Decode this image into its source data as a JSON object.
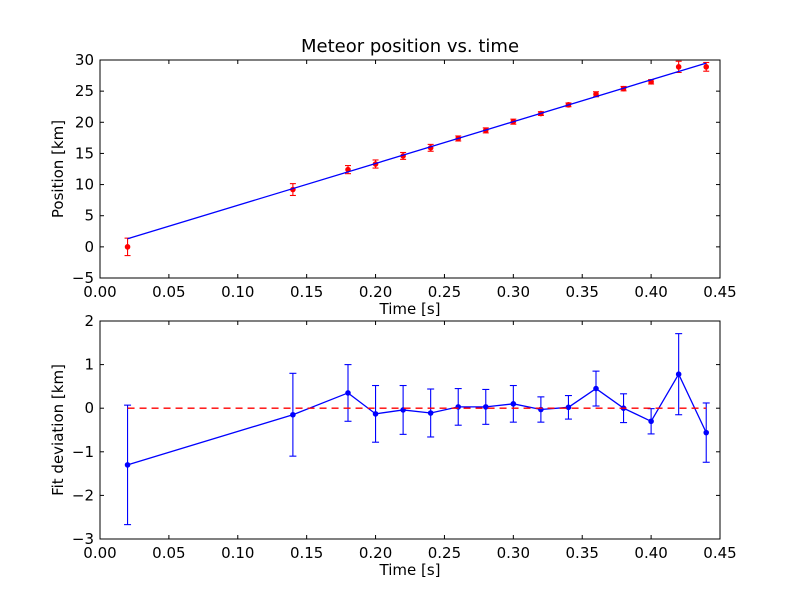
{
  "chart_data": [
    {
      "type": "scatter",
      "title": "Meteor position vs. time",
      "xlabel": "Time [s]",
      "ylabel": "Position [km]",
      "xlim": [
        0.0,
        0.45
      ],
      "ylim": [
        -5,
        30
      ],
      "xticks": [
        0.0,
        0.05,
        0.1,
        0.15,
        0.2,
        0.25,
        0.3,
        0.35,
        0.4,
        0.45
      ],
      "xtick_labels": [
        "0.00",
        "0.05",
        "0.10",
        "0.15",
        "0.20",
        "0.25",
        "0.30",
        "0.35",
        "0.40",
        "0.45"
      ],
      "yticks": [
        -5,
        0,
        5,
        10,
        15,
        20,
        25,
        30
      ],
      "ytick_labels": [
        "−5",
        "0",
        "5",
        "10",
        "15",
        "20",
        "25",
        "30"
      ],
      "grid": false,
      "series": [
        {
          "kind": "errorbar",
          "color": "#ff0000",
          "marker": "dot",
          "x": [
            0.02,
            0.14,
            0.18,
            0.2,
            0.22,
            0.24,
            0.26,
            0.28,
            0.3,
            0.32,
            0.34,
            0.36,
            0.38,
            0.4,
            0.42,
            0.44
          ],
          "y": [
            0.0,
            9.2,
            12.4,
            13.3,
            14.6,
            15.9,
            17.4,
            18.7,
            20.1,
            21.4,
            22.8,
            24.5,
            25.4,
            26.5,
            28.9,
            28.9
          ],
          "yerr": [
            1.4,
            0.95,
            0.65,
            0.65,
            0.55,
            0.55,
            0.4,
            0.4,
            0.4,
            0.3,
            0.3,
            0.4,
            0.35,
            0.35,
            0.9,
            0.7
          ]
        },
        {
          "kind": "line",
          "color": "#0000ff",
          "x": [
            0.02,
            0.44
          ],
          "y": [
            1.3,
            29.5
          ]
        }
      ]
    },
    {
      "type": "line",
      "title": "",
      "xlabel": "Time [s]",
      "ylabel": "Fit deviation [km]",
      "xlim": [
        0.0,
        0.45
      ],
      "ylim": [
        -3,
        2
      ],
      "xticks": [
        0.0,
        0.05,
        0.1,
        0.15,
        0.2,
        0.25,
        0.3,
        0.35,
        0.4,
        0.45
      ],
      "xtick_labels": [
        "0.00",
        "0.05",
        "0.10",
        "0.15",
        "0.20",
        "0.25",
        "0.30",
        "0.35",
        "0.40",
        "0.45"
      ],
      "yticks": [
        -3,
        -2,
        -1,
        0,
        1,
        2
      ],
      "ytick_labels": [
        "−3",
        "−2",
        "−1",
        "0",
        "1",
        "2"
      ],
      "grid": false,
      "series": [
        {
          "kind": "errorbar-line",
          "color": "#0000ff",
          "marker": "dot",
          "x": [
            0.02,
            0.14,
            0.18,
            0.2,
            0.22,
            0.24,
            0.26,
            0.28,
            0.3,
            0.32,
            0.34,
            0.36,
            0.38,
            0.4,
            0.42,
            0.44
          ],
          "y": [
            -1.3,
            -0.15,
            0.35,
            -0.13,
            -0.04,
            -0.11,
            0.03,
            0.03,
            0.1,
            -0.03,
            0.02,
            0.45,
            0.0,
            -0.3,
            0.78,
            -0.56
          ],
          "yerr": [
            1.37,
            0.95,
            0.65,
            0.65,
            0.56,
            0.55,
            0.42,
            0.4,
            0.42,
            0.29,
            0.27,
            0.4,
            0.33,
            0.29,
            0.93,
            0.68
          ]
        },
        {
          "kind": "dashed-line",
          "color": "#ff0000",
          "x": [
            0.02,
            0.44
          ],
          "y": [
            0.0,
            0.0
          ]
        }
      ]
    }
  ]
}
